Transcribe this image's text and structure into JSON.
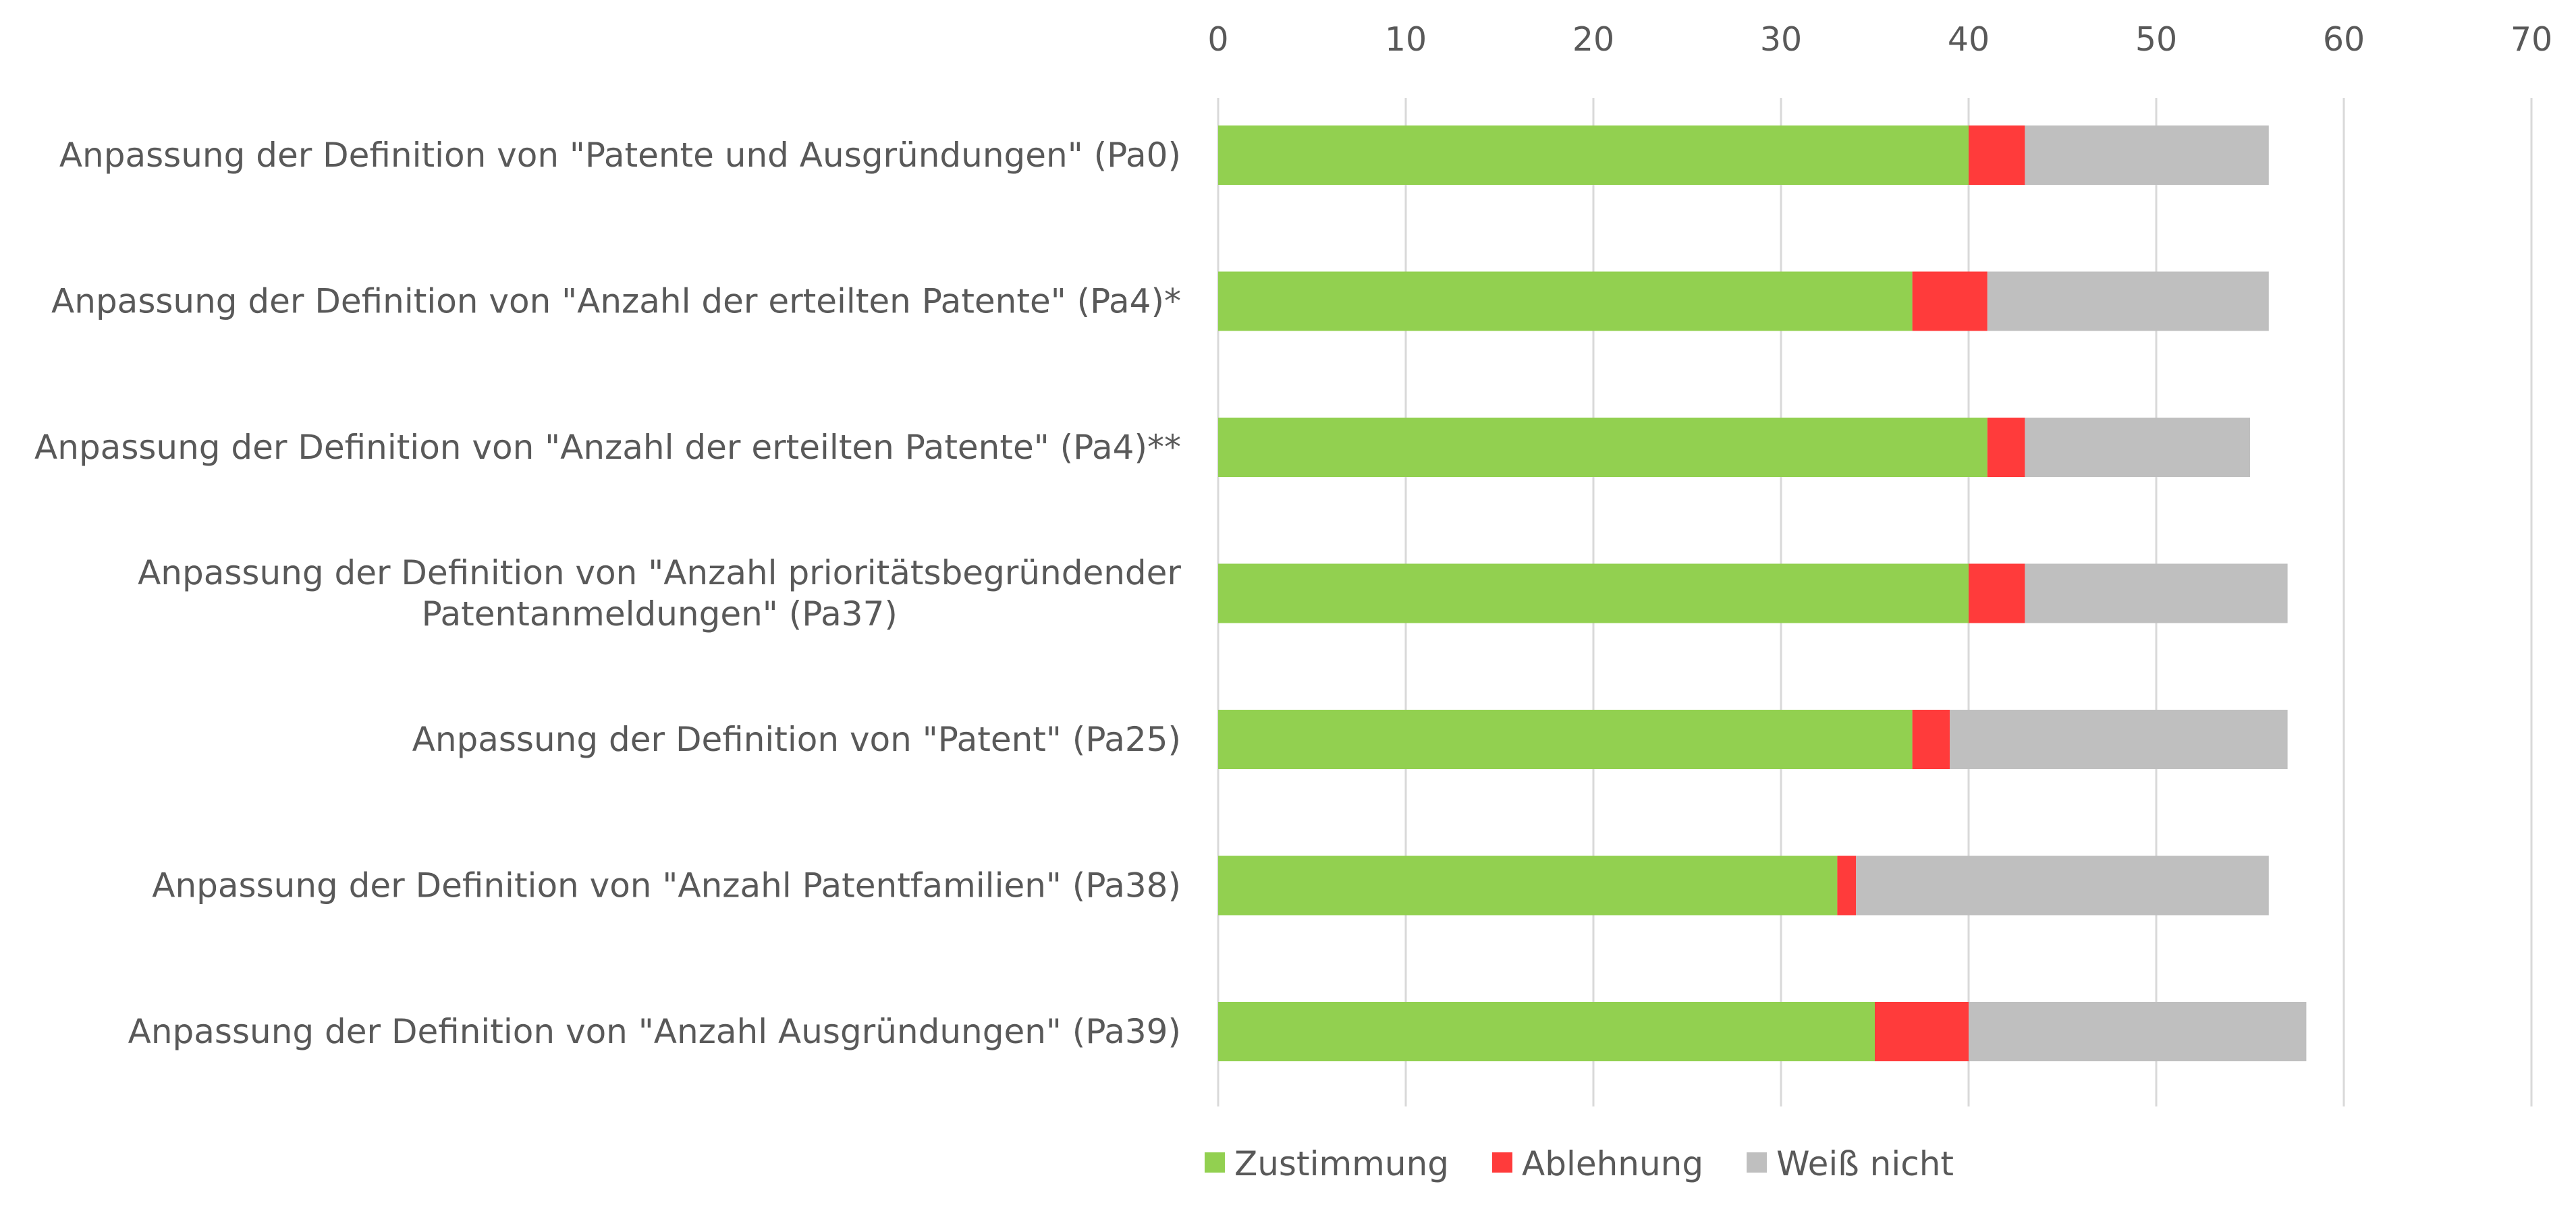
{
  "chart_data": {
    "type": "bar",
    "orientation": "horizontal",
    "stacked": true,
    "categories": [
      [
        "Anpassung der Definition von \"Patente und Ausgründungen\" (Pa0)"
      ],
      [
        "Anpassung der Definition von \"Anzahl der erteilten Patente\" (Pa4)*"
      ],
      [
        "Anpassung der Definition von \"Anzahl der erteilten Patente\" (Pa4)**"
      ],
      [
        "Anpassung der Definition von \"Anzahl prioritätsbegründender",
        "Patentanmeldungen\" (Pa37)"
      ],
      [
        "Anpassung der Definition von \"Patent\" (Pa25)"
      ],
      [
        "Anpassung der Definition von \"Anzahl Patentfamilien\" (Pa38)"
      ],
      [
        "Anpassung der Definition von \"Anzahl Ausgründungen\" (Pa39)"
      ]
    ],
    "series": [
      {
        "name": "Zustimmung",
        "color": "#92d050",
        "values": [
          40,
          37,
          41,
          40,
          37,
          33,
          35
        ]
      },
      {
        "name": "Ablehnung",
        "color": "#ff3b3b",
        "values": [
          3,
          4,
          2,
          3,
          2,
          1,
          5
        ]
      },
      {
        "name": "Weiß nicht",
        "color": "#bfbfbf",
        "values": [
          13,
          15,
          12,
          14,
          18,
          22,
          18
        ]
      }
    ],
    "xlim": [
      0,
      70
    ],
    "xticks": [
      "0",
      "10",
      "20",
      "30",
      "40",
      "50",
      "60",
      "70"
    ],
    "x_axis_position": "top",
    "grid": true,
    "legend": "bottom-center"
  }
}
